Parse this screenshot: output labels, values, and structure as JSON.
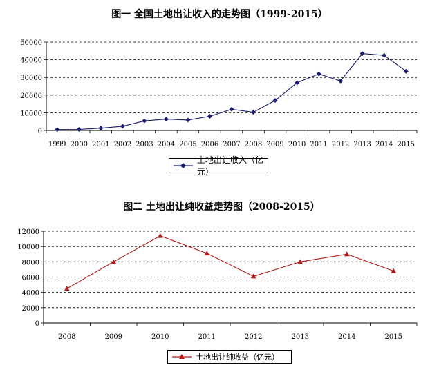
{
  "chart_data": [
    {
      "type": "line",
      "title": "图一 全国土地出让收入的走势图（1999-2015）",
      "categories": [
        "1999",
        "2000",
        "2001",
        "2002",
        "2003",
        "2004",
        "2005",
        "2006",
        "2007",
        "2008",
        "2009",
        "2010",
        "2011",
        "2012",
        "2013",
        "2014",
        "2015"
      ],
      "series": [
        {
          "name": "土地出让收入（亿元）",
          "values": [
            500,
            600,
            1300,
            2400,
            5400,
            6400,
            5900,
            8000,
            12000,
            10300,
            17000,
            27000,
            32000,
            28000,
            43500,
            42500,
            33500
          ]
        }
      ],
      "ylim": [
        0,
        50000
      ],
      "yticks": [
        0,
        10000,
        20000,
        30000,
        40000,
        50000
      ],
      "grid": "dashed horizontal",
      "legend_position": "bottom",
      "color": "#1a1a6e",
      "marker": "diamond"
    },
    {
      "type": "line",
      "title": "图二 土地出让纯收益走势图（2008-2015）",
      "categories": [
        "2008",
        "2009",
        "2010",
        "2011",
        "2012",
        "2013",
        "2014",
        "2015"
      ],
      "series": [
        {
          "name": "土地出让纯收益（亿元）",
          "values": [
            4500,
            8000,
            11400,
            9100,
            6100,
            8000,
            9000,
            6800
          ]
        }
      ],
      "ylim": [
        0,
        12000
      ],
      "yticks": [
        0,
        2000,
        4000,
        6000,
        8000,
        10000,
        12000
      ],
      "grid": "dashed horizontal",
      "legend_position": "bottom",
      "color": "#b01c1c",
      "marker": "triangle"
    }
  ]
}
